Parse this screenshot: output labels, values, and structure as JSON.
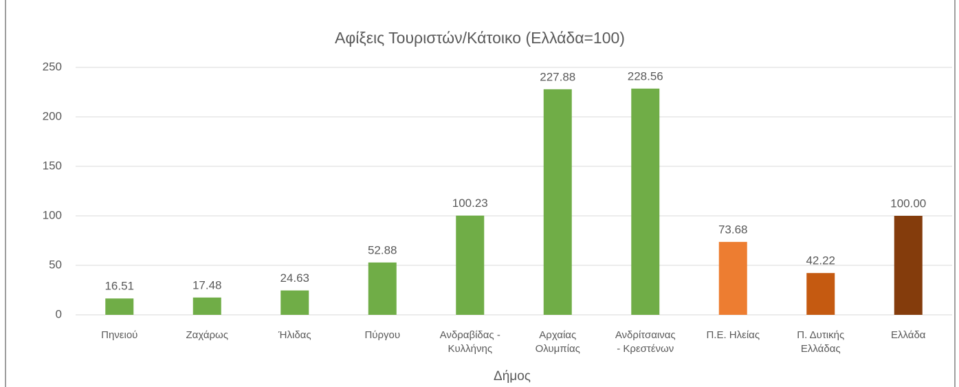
{
  "chart_data": {
    "type": "bar",
    "title": "Αφίξεις Τουριστών/Κάτοικο (Ελλάδα=100)",
    "xlabel": "Δήμος",
    "categories": [
      "Πηνειού",
      "Ζαχάρως",
      "Ήλιδας",
      "Πύργου",
      "Ανδραβίδας -\nΚυλλήνης",
      "Αρχαίας\nΟλυμπίας",
      "Ανδρίτσαινας\n- Κρεστένων",
      "Π.Ε. Ηλείας",
      "Π. Δυτικής\nΕλλάδας",
      "Ελλάδα"
    ],
    "values": [
      16.51,
      17.48,
      24.63,
      52.88,
      100.23,
      227.88,
      228.56,
      73.68,
      42.22,
      100
    ],
    "value_labels": [
      "16.51",
      "17.48",
      "24.63",
      "52.88",
      "100.23",
      "227.88",
      "228.56",
      "73.68",
      "42.22",
      "100.00"
    ],
    "colors": [
      "#70ad47",
      "#70ad47",
      "#70ad47",
      "#70ad47",
      "#70ad47",
      "#70ad47",
      "#70ad47",
      "#ed7d31",
      "#c55a11",
      "#843c0c"
    ],
    "ylim": [
      0,
      250
    ],
    "yticks": [
      0,
      50,
      100,
      150,
      200,
      250
    ],
    "grid": true
  }
}
